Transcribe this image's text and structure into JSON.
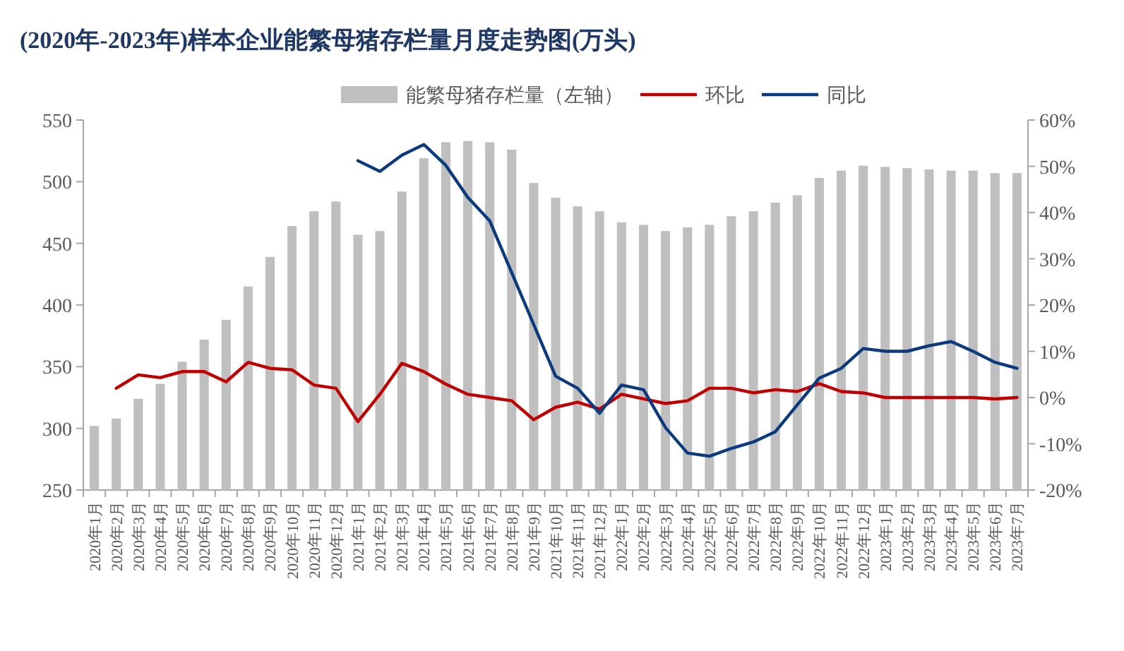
{
  "chart_data": {
    "type": "bar",
    "title": "(2020年-2023年)样本企业能繁母猪存栏量月度走势图(万头)",
    "categories": [
      "2020年1月",
      "2020年2月",
      "2020年3月",
      "2020年4月",
      "2020年5月",
      "2020年6月",
      "2020年7月",
      "2020年8月",
      "2020年9月",
      "2020年10月",
      "2020年11月",
      "2020年12月",
      "2021年1月",
      "2021年2月",
      "2021年3月",
      "2021年4月",
      "2021年5月",
      "2021年6月",
      "2021年7月",
      "2021年8月",
      "2021年9月",
      "2021年10月",
      "2021年11月",
      "2021年12月",
      "2022年1月",
      "2022年2月",
      "2022年3月",
      "2022年4月",
      "2022年5月",
      "2022年6月",
      "2022年7月",
      "2022年8月",
      "2022年9月",
      "2022年10月",
      "2022年11月",
      "2022年12月",
      "2023年1月",
      "2023年2月",
      "2023年3月",
      "2023年4月",
      "2023年5月",
      "2023年6月",
      "2023年7月"
    ],
    "series": [
      {
        "name": "能繁母猪存栏量（左轴）",
        "color": "#bfbfbf",
        "values": [
          302,
          308,
          324,
          336,
          354,
          372,
          388,
          415,
          439,
          464,
          476,
          484,
          457,
          460,
          492,
          519,
          532,
          533,
          532,
          526,
          499,
          487,
          480,
          476,
          467,
          465,
          460,
          463,
          465,
          472,
          476,
          483,
          489,
          503,
          509,
          513,
          512,
          511,
          510,
          509,
          509,
          507,
          507
        ]
      },
      {
        "name": "环比",
        "type": "line",
        "axis": "y2",
        "color": "#c00000",
        "values": [
          null,
          2.0,
          4.9,
          4.3,
          5.6,
          5.6,
          3.4,
          7.6,
          6.3,
          6.0,
          2.7,
          2.0,
          -5.2,
          0.7,
          7.4,
          5.6,
          2.9,
          0.7,
          0,
          -0.7,
          -4.8,
          -2.1,
          -1.0,
          -2.5,
          0.7,
          -0.3,
          -1.3,
          -0.7,
          2.0,
          2.0,
          1.0,
          1.7,
          1.3,
          3.0,
          1.3,
          1.0,
          0,
          0,
          0,
          0,
          0,
          -0.3,
          0
        ]
      },
      {
        "name": "同比",
        "type": "line",
        "axis": "y2",
        "color": "#0b3a7e",
        "values": [
          null,
          null,
          null,
          null,
          null,
          null,
          null,
          null,
          null,
          null,
          null,
          null,
          51.2,
          48.9,
          52.4,
          54.7,
          50.2,
          43.3,
          38.2,
          27,
          15.8,
          4.6,
          2.0,
          -3.4,
          2.7,
          1.7,
          -6.5,
          -12,
          -12.7,
          -11,
          -9.6,
          -7.4,
          -1.6,
          4.2,
          6.3,
          10.6,
          10,
          10,
          11.2,
          12.1,
          10,
          7.6,
          6.3
        ]
      }
    ],
    "ylim": [
      250,
      550
    ],
    "yticks": [
      250,
      300,
      350,
      400,
      450,
      500,
      550
    ],
    "y2lim": [
      -20,
      60
    ],
    "y2ticks": [
      {
        "value": -20,
        "label": "-20%"
      },
      {
        "value": -10,
        "label": "-10%"
      },
      {
        "value": 0,
        "label": "0%"
      },
      {
        "value": 10,
        "label": "10%"
      },
      {
        "value": 20,
        "label": "20%"
      },
      {
        "value": 30,
        "label": "30%"
      },
      {
        "value": 40,
        "label": "40%"
      },
      {
        "value": 50,
        "label": "50%"
      },
      {
        "value": 60,
        "label": "60%"
      }
    ],
    "legend": "top",
    "grid": false
  }
}
